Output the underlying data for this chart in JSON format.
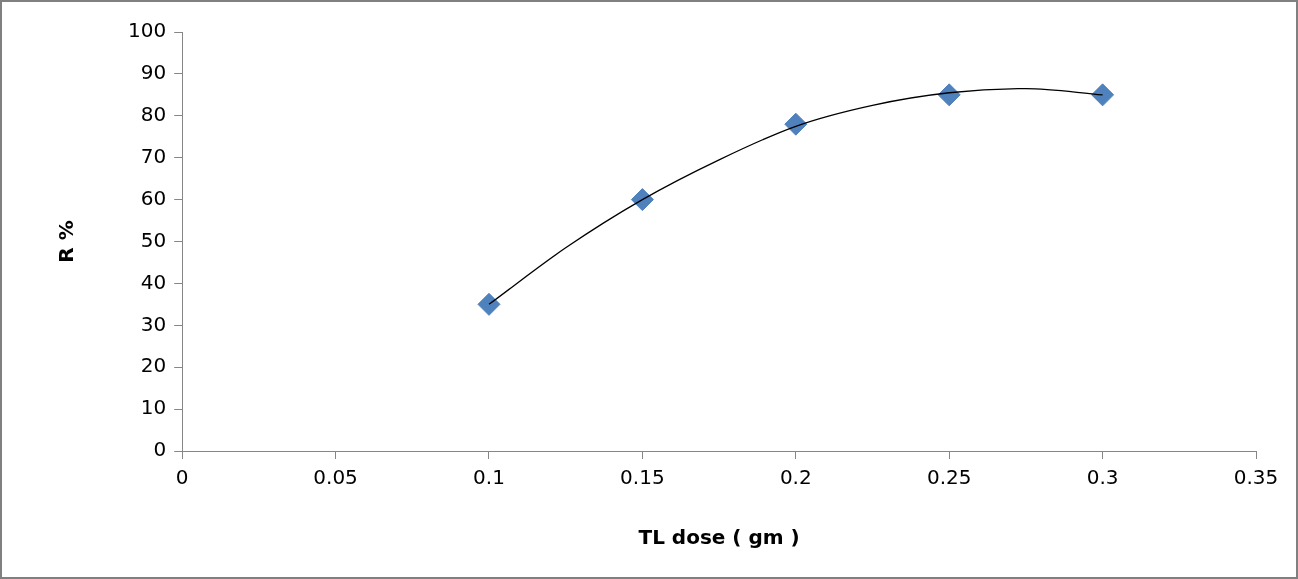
{
  "chart_data": {
    "type": "scatter",
    "xlabel": "TL dose ( gm )",
    "ylabel": "R %",
    "xlim": [
      0,
      0.35
    ],
    "xticks": [
      0,
      0.05,
      0.1,
      0.15,
      0.2,
      0.25,
      0.3,
      0.35
    ],
    "ylim": [
      0,
      100
    ],
    "yticks": [
      0,
      10,
      20,
      30,
      40,
      50,
      60,
      70,
      80,
      90,
      100
    ],
    "grid": false,
    "legend": false,
    "marker": "diamond",
    "series": [
      {
        "color": "#4f81bd",
        "x": [
          0.1,
          0.15,
          0.2,
          0.25,
          0.3
        ],
        "values": [
          35,
          60,
          78,
          85,
          85
        ]
      },
      {
        "type": "line",
        "color": "#000000",
        "marker": "none",
        "x": [
          0.1,
          0.125,
          0.15,
          0.175,
          0.2,
          0.225,
          0.25,
          0.275,
          0.3
        ],
        "values": [
          35,
          48.5,
          60,
          69.5,
          77.5,
          82.5,
          85.5,
          86.5,
          85
        ]
      }
    ]
  }
}
